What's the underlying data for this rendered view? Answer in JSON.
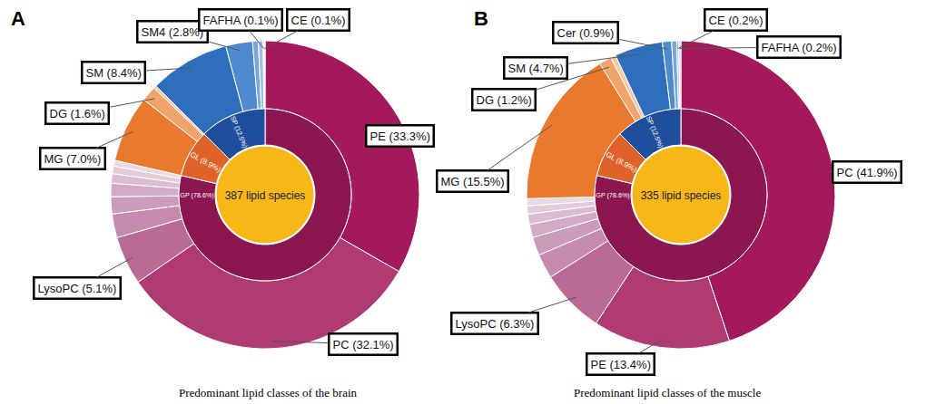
{
  "chart_data": [
    {
      "type": "pie",
      "panel": "A",
      "caption": "Predominant lipid classes of the brain",
      "center": {
        "text": "387 lipid species",
        "color": "#f7b718"
      },
      "data_labels": true,
      "inner": {
        "labels": [
          "GP (78.6%)",
          "GL (8.9%)",
          "SP (12.5%)"
        ],
        "values": [
          78.6,
          8.9,
          12.5
        ],
        "colors": [
          "#8c1650",
          "#e0622b",
          "#1f4f9c"
        ]
      },
      "outer": {
        "labels": [
          "PE (33.3%)",
          "PC (32.1%)",
          "LysoPC (5.1%)",
          null,
          null,
          null,
          null,
          null,
          null,
          "MG (7.0%)",
          "DG (1.6%)",
          null,
          "SM (8.4%)",
          "SM4 (2.8%)",
          null,
          null,
          "FAFHA (0.1%)",
          "CE (0.1%)"
        ],
        "values": [
          33.3,
          32.1,
          5.1,
          2.5,
          1.8,
          1.4,
          1.0,
          0.8,
          0.6,
          7.0,
          1.6,
          0.3,
          8.4,
          2.8,
          0.6,
          0.5,
          0.1,
          0.1
        ],
        "colors": [
          "#a3195b",
          "#b03a72",
          "#b96b96",
          "#c58aad",
          "#cc9bba",
          "#d4abc6",
          "#dcbcd2",
          "#e3cbdc",
          "#e9d9e4",
          "#e8792d",
          "#f0a36b",
          "#f6c9a5",
          "#2d6fbd",
          "#4f8ad0",
          "#7aa6de",
          "#a0c0e8",
          "#bcd3ef",
          "#d5e3f5"
        ]
      }
    },
    {
      "type": "pie",
      "panel": "B",
      "caption": "Predominant lipid classes of the muscle",
      "center": {
        "text": "335 lipid species",
        "color": "#f7b718"
      },
      "data_labels": true,
      "inner": {
        "labels": [
          "GP (78.6%)",
          "GL (8.9%)",
          "SP (12.5%)"
        ],
        "values": [
          78.6,
          8.9,
          12.5
        ],
        "colors": [
          "#8c1650",
          "#e0622b",
          "#1f4f9c"
        ]
      },
      "outer": {
        "labels": [
          "PC (41.9%)",
          "PE (13.4%)",
          "LysoPC (6.3%)",
          null,
          null,
          null,
          null,
          null,
          null,
          "MG (15.5%)",
          "DG (1.2%)",
          null,
          "SM (4.7%)",
          "Cer (0.9%)",
          null,
          "CE (0.2%)",
          "FAFHA (0.2%)"
        ],
        "values": [
          41.9,
          13.4,
          6.3,
          2.4,
          1.8,
          1.3,
          1.0,
          0.8,
          0.7,
          15.5,
          1.2,
          0.5,
          4.7,
          0.9,
          0.5,
          0.2,
          0.2
        ],
        "colors": [
          "#a3195b",
          "#b03a72",
          "#b96b96",
          "#c58aad",
          "#cc9bba",
          "#d4abc6",
          "#dcbcd2",
          "#e3cbdc",
          "#e9d9e4",
          "#e8792d",
          "#f0a36b",
          "#f6c9a5",
          "#2d6fbd",
          "#4f8ad0",
          "#7aa6de",
          "#a0c0e8",
          "#bcd3ef"
        ]
      }
    }
  ]
}
